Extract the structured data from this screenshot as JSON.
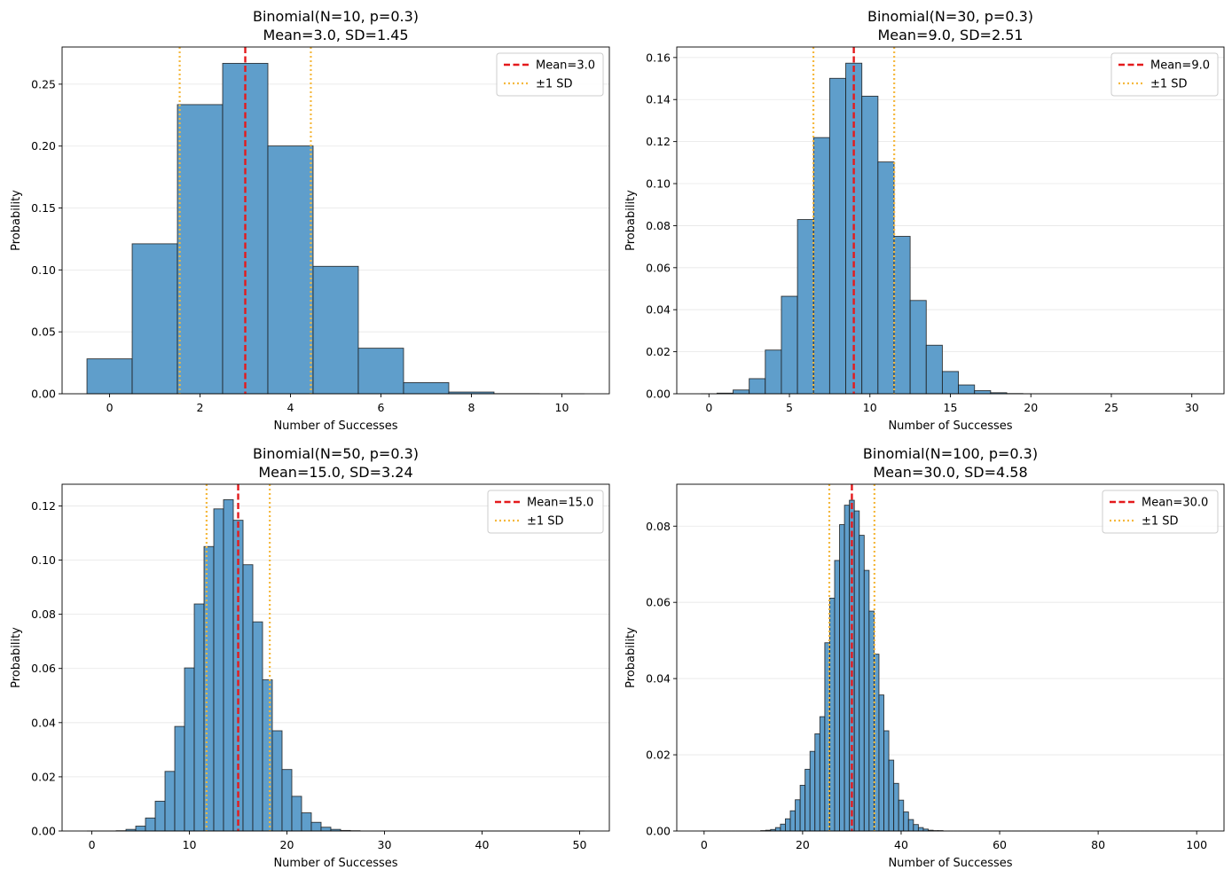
{
  "figure": {
    "layout": "2x2 grid",
    "colors": {
      "bar_fill": "#5f9ecb",
      "bar_edge": "#1a1a1a",
      "mean_line": "#e41a1c",
      "sd_line": "#f5b83d",
      "grid": "#e6e6e6"
    }
  },
  "chart_data": [
    {
      "type": "bar",
      "title_line1": "Binomial(N=10, p=0.3)",
      "title_line2": "Mean=3.0, SD=1.45",
      "xlabel": "Number of Successes",
      "ylabel": "Probability",
      "xlim": [
        -1.05,
        11.05
      ],
      "ylim": [
        0,
        0.28
      ],
      "xticks": [
        0,
        2,
        4,
        6,
        8,
        10
      ],
      "xtick_labels": [
        "0",
        "2",
        "4",
        "6",
        "8",
        "10"
      ],
      "yticks": [
        0,
        0.05,
        0.1,
        0.15,
        0.2,
        0.25
      ],
      "ytick_labels": [
        "0.00",
        "0.05",
        "0.10",
        "0.15",
        "0.20",
        "0.25"
      ],
      "grid": "y",
      "x": [
        0,
        1,
        2,
        3,
        4,
        5,
        6,
        7,
        8,
        9,
        10
      ],
      "values": [
        0.0282,
        0.1211,
        0.2335,
        0.2668,
        0.2001,
        0.1029,
        0.0368,
        0.009,
        0.0014,
        0.0001,
        0.0
      ],
      "mean": 3.0,
      "sd": 1.45,
      "legend": {
        "position": "upper right",
        "entries": [
          {
            "label": "Mean=3.0",
            "style": "dashed",
            "color": "#e41a1c"
          },
          {
            "label": "±1 SD",
            "style": "dotted",
            "color": "#f5b83d"
          }
        ]
      }
    },
    {
      "type": "bar",
      "title_line1": "Binomial(N=30, p=0.3)",
      "title_line2": "Mean=9.0, SD=2.51",
      "xlabel": "Number of Successes",
      "ylabel": "Probability",
      "xlim": [
        -2.0,
        32.0
      ],
      "ylim": [
        0,
        0.165
      ],
      "xticks": [
        0,
        5,
        10,
        15,
        20,
        25,
        30
      ],
      "xtick_labels": [
        "0",
        "5",
        "10",
        "15",
        "20",
        "25",
        "30"
      ],
      "yticks": [
        0,
        0.02,
        0.04,
        0.06,
        0.08,
        0.1,
        0.12,
        0.14,
        0.16
      ],
      "ytick_labels": [
        "0.00",
        "0.02",
        "0.04",
        "0.06",
        "0.08",
        "0.10",
        "0.12",
        "0.14",
        "0.16"
      ],
      "grid": "y",
      "x": [
        0,
        1,
        2,
        3,
        4,
        5,
        6,
        7,
        8,
        9,
        10,
        11,
        12,
        13,
        14,
        15,
        16,
        17,
        18,
        19,
        20,
        21,
        22,
        23,
        24,
        25,
        26,
        27,
        28,
        29,
        30
      ],
      "values": [
        0.0,
        0.0003,
        0.0018,
        0.0072,
        0.0208,
        0.0464,
        0.0829,
        0.1219,
        0.1501,
        0.1573,
        0.1416,
        0.1103,
        0.0749,
        0.0444,
        0.0231,
        0.0106,
        0.0042,
        0.0015,
        0.0005,
        0.0001,
        0.0,
        0,
        0,
        0,
        0,
        0,
        0,
        0,
        0,
        0,
        0
      ],
      "mean": 9.0,
      "sd": 2.51,
      "legend": {
        "position": "upper right",
        "entries": [
          {
            "label": "Mean=9.0",
            "style": "dashed",
            "color": "#e41a1c"
          },
          {
            "label": "±1 SD",
            "style": "dotted",
            "color": "#f5b83d"
          }
        ]
      }
    },
    {
      "type": "bar",
      "title_line1": "Binomial(N=50, p=0.3)",
      "title_line2": "Mean=15.0, SD=3.24",
      "xlabel": "Number of Successes",
      "ylabel": "Probability",
      "xlim": [
        -3.05,
        53.05
      ],
      "ylim": [
        0,
        0.128
      ],
      "xticks": [
        0,
        10,
        20,
        30,
        40,
        50
      ],
      "xtick_labels": [
        "0",
        "10",
        "20",
        "30",
        "40",
        "50"
      ],
      "yticks": [
        0,
        0.02,
        0.04,
        0.06,
        0.08,
        0.1,
        0.12
      ],
      "ytick_labels": [
        "0.00",
        "0.02",
        "0.04",
        "0.06",
        "0.08",
        "0.10",
        "0.12"
      ],
      "grid": "y",
      "x": [
        0,
        1,
        2,
        3,
        4,
        5,
        6,
        7,
        8,
        9,
        10,
        11,
        12,
        13,
        14,
        15,
        16,
        17,
        18,
        19,
        20,
        21,
        22,
        23,
        24,
        25,
        26,
        27,
        28,
        29,
        30,
        31,
        32,
        33,
        34,
        35,
        36,
        37,
        38,
        39,
        40,
        41,
        42,
        43,
        44,
        45,
        46,
        47,
        48,
        49,
        50
      ],
      "values": [
        0,
        0,
        0.0,
        0.0001,
        0.0006,
        0.0018,
        0.0048,
        0.011,
        0.022,
        0.0386,
        0.0602,
        0.0838,
        0.105,
        0.1189,
        0.1223,
        0.1147,
        0.0983,
        0.0772,
        0.0558,
        0.037,
        0.0227,
        0.0128,
        0.0067,
        0.0032,
        0.0014,
        0.0006,
        0.0002,
        0.0001,
        0,
        0,
        0,
        0,
        0,
        0,
        0,
        0,
        0,
        0,
        0,
        0,
        0,
        0,
        0,
        0,
        0,
        0,
        0,
        0,
        0,
        0,
        0
      ],
      "mean": 15.0,
      "sd": 3.24,
      "legend": {
        "position": "upper right",
        "entries": [
          {
            "label": "Mean=15.0",
            "style": "dashed",
            "color": "#e41a1c"
          },
          {
            "label": "±1 SD",
            "style": "dotted",
            "color": "#f5b83d"
          }
        ]
      }
    },
    {
      "type": "bar",
      "title_line1": "Binomial(N=100, p=0.3)",
      "title_line2": "Mean=30.0, SD=4.58",
      "xlabel": "Number of Successes",
      "ylabel": "Probability",
      "xlim": [
        -5.55,
        105.55
      ],
      "ylim": [
        0,
        0.091
      ],
      "xticks": [
        0,
        20,
        40,
        60,
        80,
        100
      ],
      "xtick_labels": [
        "0",
        "20",
        "40",
        "60",
        "80",
        "100"
      ],
      "yticks": [
        0,
        0.02,
        0.04,
        0.06,
        0.08
      ],
      "ytick_labels": [
        "0.00",
        "0.02",
        "0.04",
        "0.06",
        "0.08"
      ],
      "grid": "y",
      "x_start": 0,
      "values": [
        0,
        0,
        0,
        0,
        0,
        0,
        0,
        0,
        0,
        0,
        0,
        0,
        0.0001,
        0.0002,
        0.0004,
        0.0009,
        0.0018,
        0.0032,
        0.0053,
        0.0082,
        0.012,
        0.0162,
        0.0209,
        0.0255,
        0.03,
        0.0494,
        0.0611,
        0.071,
        0.0804,
        0.0855,
        0.0868,
        0.084,
        0.0776,
        0.0684,
        0.0577,
        0.0464,
        0.0357,
        0.0263,
        0.0186,
        0.0125,
        0.0081,
        0.005,
        0.003,
        0.0017,
        0.0009,
        0.0005,
        0.0002,
        0.0001,
        0.0001,
        0,
        0,
        0,
        0,
        0,
        0,
        0,
        0,
        0,
        0,
        0,
        0,
        0,
        0,
        0,
        0,
        0,
        0,
        0,
        0,
        0,
        0,
        0,
        0,
        0,
        0,
        0,
        0,
        0,
        0,
        0,
        0,
        0,
        0,
        0,
        0,
        0,
        0,
        0,
        0,
        0,
        0,
        0,
        0,
        0,
        0,
        0,
        0,
        0,
        0,
        0,
        0
      ],
      "mean": 30.0,
      "sd": 4.58,
      "legend": {
        "position": "upper right",
        "entries": [
          {
            "label": "Mean=30.0",
            "style": "dashed",
            "color": "#e41a1c"
          },
          {
            "label": "±1 SD",
            "style": "dotted",
            "color": "#f5b83d"
          }
        ]
      }
    }
  ]
}
